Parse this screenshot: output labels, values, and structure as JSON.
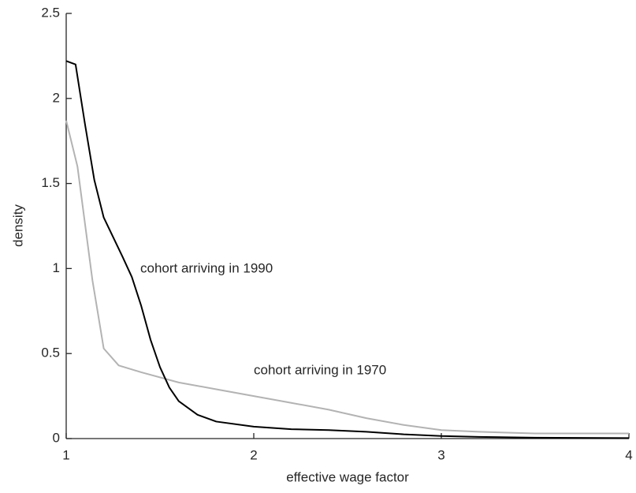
{
  "chart_data": {
    "type": "line",
    "xlabel": "effective wage factor",
    "ylabel": "density",
    "xlim": [
      1,
      4
    ],
    "ylim": [
      0,
      2.5
    ],
    "xticks": [
      1,
      2,
      3,
      4
    ],
    "yticks": [
      0,
      0.5,
      1,
      1.5,
      2,
      2.5
    ],
    "grid": false,
    "series": [
      {
        "name": "cohort arriving in 1990",
        "color": "#000000",
        "x": [
          1,
          1.05,
          1.1,
          1.15,
          1.2,
          1.3,
          1.35,
          1.4,
          1.45,
          1.5,
          1.55,
          1.6,
          1.7,
          1.8,
          2.0,
          2.2,
          2.4,
          2.6,
          2.8,
          3.0,
          3.2,
          3.5,
          4.0
        ],
        "values": [
          2.22,
          2.2,
          1.85,
          1.52,
          1.3,
          1.07,
          0.95,
          0.78,
          0.58,
          0.42,
          0.3,
          0.22,
          0.14,
          0.1,
          0.07,
          0.055,
          0.05,
          0.04,
          0.025,
          0.015,
          0.01,
          0.005,
          0.003
        ]
      },
      {
        "name": "cohort arriving in 1970",
        "color": "#b3b3b3",
        "x": [
          1,
          1.06,
          1.14,
          1.2,
          1.28,
          1.4,
          1.6,
          1.8,
          2.0,
          2.2,
          2.4,
          2.6,
          2.8,
          3.0,
          3.2,
          3.5,
          4.0
        ],
        "values": [
          1.87,
          1.6,
          0.93,
          0.53,
          0.43,
          0.39,
          0.33,
          0.29,
          0.25,
          0.21,
          0.17,
          0.12,
          0.08,
          0.05,
          0.04,
          0.03,
          0.03
        ]
      }
    ]
  }
}
